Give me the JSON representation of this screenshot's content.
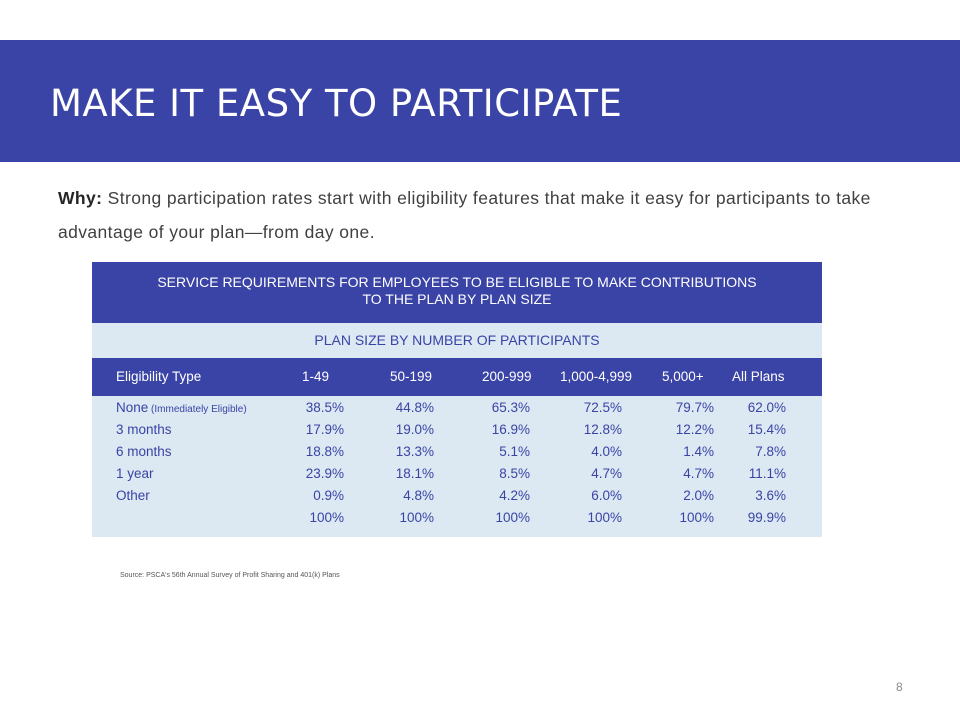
{
  "slide": {
    "title": "MAKE IT EASY TO PARTICIPATE",
    "why_label": "Why:",
    "why_text": " Strong participation rates start with eligibility features that make it easy for participants to take advantage of your plan—from day one.",
    "page_number": "8",
    "accent_color": "#3a44a6"
  },
  "table": {
    "title_line1": "SERVICE REQUIREMENTS FOR EMPLOYEES TO BE ELIGIBLE TO MAKE CONTRIBUTIONS",
    "title_line2": "TO THE PLAN BY PLAN SIZE",
    "subtitle": "PLAN SIZE BY NUMBER OF PARTICIPANTS",
    "columns": [
      "Eligibility Type",
      "1-49",
      "50-199",
      "200-999",
      "1,000-4,999",
      "5,000+",
      "All Plans"
    ],
    "rows": [
      {
        "label": "None",
        "note": " (Immediately Eligible)",
        "values": [
          "38.5%",
          "44.8%",
          "65.3%",
          "72.5%",
          "79.7%",
          "62.0%"
        ]
      },
      {
        "label": "3 months",
        "note": "",
        "values": [
          "17.9%",
          "19.0%",
          "16.9%",
          "12.8%",
          "12.2%",
          "15.4%"
        ]
      },
      {
        "label": "6 months",
        "note": "",
        "values": [
          "18.8%",
          "13.3%",
          "5.1%",
          "4.0%",
          "1.4%",
          "7.8%"
        ]
      },
      {
        "label": "1 year",
        "note": "",
        "values": [
          "23.9%",
          "18.1%",
          "8.5%",
          "4.7%",
          "4.7%",
          "11.1%"
        ]
      },
      {
        "label": "Other",
        "note": "",
        "values": [
          "0.9%",
          "4.8%",
          "4.2%",
          "6.0%",
          "2.0%",
          "3.6%"
        ]
      },
      {
        "label": "",
        "note": "",
        "values": [
          "100%",
          "100%",
          "100%",
          "100%",
          "100%",
          "99.9%"
        ]
      }
    ]
  },
  "source": "Source: PSCA's 56th Annual Survey of Profit Sharing and 401(k) Plans"
}
